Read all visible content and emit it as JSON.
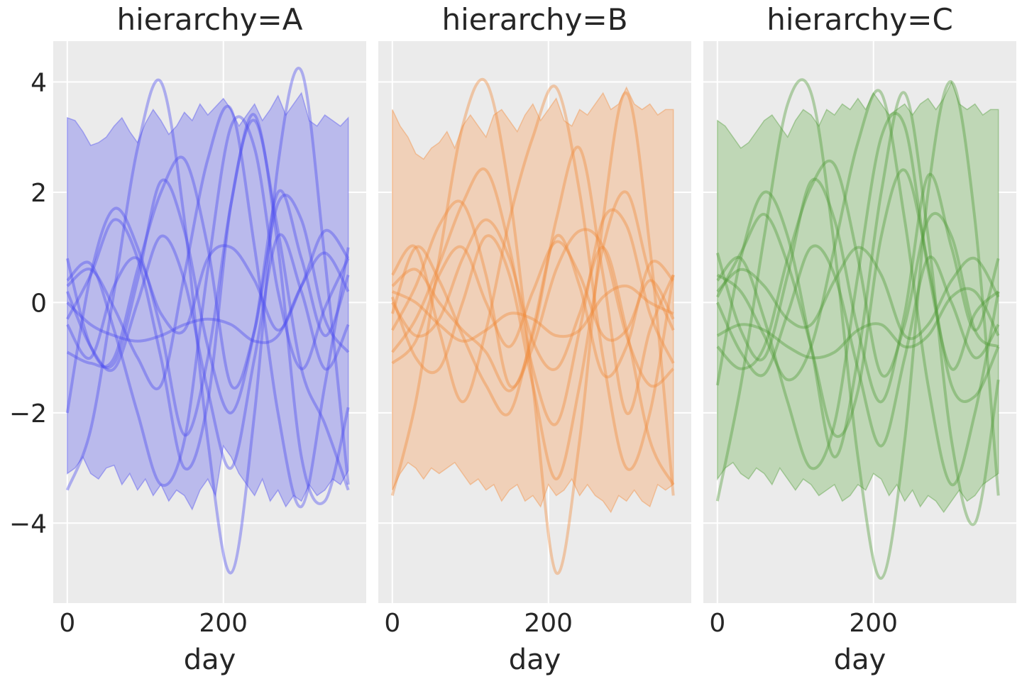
{
  "chart_data": {
    "type": "line",
    "facet_label": "hierarchy",
    "xlabel": "day",
    "xlim": [
      -18,
      383
    ],
    "ylim": [
      -5.45,
      4.74
    ],
    "xticks": [
      0,
      200
    ],
    "yticks": [
      -4,
      -2,
      0,
      2,
      4
    ],
    "ytick_labels": [
      "−4",
      "−2",
      "0",
      "2",
      "4"
    ],
    "grid": true,
    "x_curves": [
      0,
      30,
      60,
      90,
      120,
      150,
      180,
      210,
      240,
      270,
      300,
      330,
      360
    ],
    "x_band": [
      0,
      10,
      20,
      30,
      40,
      50,
      60,
      70,
      80,
      90,
      100,
      110,
      120,
      130,
      140,
      150,
      160,
      170,
      180,
      190,
      200,
      210,
      220,
      230,
      240,
      250,
      260,
      270,
      280,
      290,
      300,
      310,
      320,
      330,
      340,
      350,
      360
    ],
    "panels": [
      {
        "title": "hierarchy=A",
        "color": "#4b4bf0",
        "fill": "#babaec",
        "band_upper": [
          3.35,
          3.3,
          3.1,
          2.85,
          2.9,
          3.0,
          3.2,
          3.35,
          3.1,
          2.9,
          3.25,
          3.5,
          3.3,
          3.05,
          3.2,
          3.45,
          3.3,
          3.6,
          3.4,
          3.55,
          3.7,
          3.5,
          3.2,
          3.4,
          3.6,
          3.3,
          3.5,
          3.75,
          3.4,
          3.6,
          3.8,
          3.3,
          3.2,
          3.4,
          3.3,
          3.2,
          3.35
        ],
        "band_lower": [
          -3.1,
          -3.0,
          -2.8,
          -3.1,
          -3.2,
          -3.0,
          -2.95,
          -3.3,
          -3.1,
          -3.4,
          -3.2,
          -3.5,
          -3.3,
          -3.6,
          -3.4,
          -3.5,
          -3.75,
          -3.4,
          -3.2,
          -3.5,
          -2.6,
          -2.8,
          -3.1,
          -3.3,
          -3.5,
          -3.2,
          -3.6,
          -3.4,
          -3.7,
          -3.5,
          -3.6,
          -3.3,
          -3.5,
          -3.4,
          -3.2,
          -3.3,
          -3.05
        ],
        "curves": [
          [
            -3.4,
            -2.3,
            0.2,
            2.8,
            4.0,
            1.5,
            -2.5,
            -4.9,
            -2.0,
            2.5,
            4.2,
            0.8,
            -3.3
          ],
          [
            -2.0,
            0.5,
            1.7,
            1.0,
            -0.5,
            -2.4,
            -1.0,
            1.8,
            3.4,
            1.0,
            -2.8,
            -3.6,
            -1.9
          ],
          [
            0.8,
            -0.8,
            -1.1,
            0.4,
            2.2,
            1.3,
            -0.8,
            -2.0,
            -0.5,
            2.0,
            0.8,
            -0.6,
            0.5
          ],
          [
            -0.4,
            -1.0,
            0.3,
            0.8,
            -0.2,
            -0.5,
            0.8,
            1.0,
            0.4,
            -0.5,
            0.3,
            1.3,
            0.8
          ],
          [
            0.3,
            0.6,
            -0.1,
            -1.0,
            -1.5,
            0.5,
            2.6,
            3.5,
            1.0,
            -2.0,
            -3.7,
            -1.5,
            1.0
          ],
          [
            0.0,
            -0.4,
            -0.6,
            -0.7,
            -0.6,
            -0.4,
            -0.3,
            -0.4,
            -0.7,
            -0.6,
            0.3,
            0.9,
            0.2
          ],
          [
            -0.9,
            -1.1,
            -1.0,
            0.6,
            2.0,
            2.6,
            1.0,
            -1.5,
            -0.5,
            1.8,
            1.5,
            -0.3,
            -0.9
          ],
          [
            0.4,
            0.7,
            -0.5,
            -2.0,
            -3.3,
            -2.5,
            0.6,
            3.2,
            2.8,
            0.2,
            -1.2,
            -0.1,
            0.8
          ],
          [
            0.2,
            -0.8,
            -1.2,
            0.0,
            1.2,
            0.4,
            -1.6,
            -3.0,
            -1.0,
            1.2,
            0.2,
            -1.2,
            -0.4
          ],
          [
            -0.3,
            0.5,
            1.5,
            0.8,
            -1.0,
            -3.0,
            -1.8,
            1.8,
            3.3,
            1.3,
            -1.2,
            -2.2,
            -3.4
          ]
        ]
      },
      {
        "title": "hierarchy=B",
        "color": "#f08a3a",
        "fill": "#f0d0b8",
        "band_upper": [
          3.5,
          3.2,
          3.0,
          2.7,
          2.6,
          2.8,
          2.9,
          3.1,
          2.8,
          3.2,
          3.4,
          3.2,
          3.0,
          3.4,
          3.5,
          3.3,
          3.1,
          3.4,
          3.6,
          3.3,
          3.5,
          3.7,
          3.3,
          3.2,
          3.5,
          3.4,
          3.6,
          3.8,
          3.5,
          3.6,
          3.9,
          3.6,
          3.5,
          3.6,
          3.4,
          3.5,
          3.5
        ],
        "band_lower": [
          -3.4,
          -3.1,
          -2.9,
          -3.0,
          -3.2,
          -3.0,
          -3.1,
          -3.0,
          -2.9,
          -3.1,
          -3.3,
          -3.2,
          -3.4,
          -3.3,
          -3.6,
          -3.4,
          -3.3,
          -3.6,
          -3.5,
          -3.7,
          -3.3,
          -3.5,
          -3.4,
          -3.2,
          -3.5,
          -3.3,
          -3.5,
          -3.6,
          -3.8,
          -3.5,
          -3.6,
          -3.4,
          -3.6,
          -3.7,
          -3.3,
          -3.4,
          -3.3
        ],
        "curves": [
          [
            -3.5,
            -1.8,
            0.8,
            3.2,
            4.0,
            2.0,
            -1.5,
            -4.9,
            -2.5,
            1.5,
            3.8,
            1.0,
            -3.5
          ],
          [
            0.5,
            1.0,
            -0.5,
            -1.8,
            -0.5,
            1.5,
            3.0,
            3.9,
            2.0,
            -1.0,
            -3.0,
            -2.0,
            0.5
          ],
          [
            -1.1,
            -0.7,
            0.5,
            1.0,
            0.0,
            -0.8,
            0.2,
            1.1,
            0.5,
            -0.6,
            -0.5,
            0.4,
            -0.3
          ],
          [
            0.2,
            0.0,
            -0.4,
            -0.7,
            -0.5,
            -0.2,
            -0.3,
            -0.6,
            -0.5,
            0.1,
            0.3,
            0.0,
            -0.2
          ],
          [
            -0.9,
            -0.3,
            0.7,
            1.8,
            2.4,
            1.0,
            -1.2,
            -2.2,
            -0.5,
            1.5,
            1.4,
            -0.2,
            -1.1
          ],
          [
            0.1,
            -1.0,
            -1.2,
            0.0,
            1.2,
            0.5,
            -1.5,
            -3.2,
            -1.5,
            1.0,
            2.0,
            0.5,
            -0.5
          ],
          [
            0.3,
            0.6,
            0.0,
            -0.5,
            -0.9,
            -1.6,
            -0.8,
            0.6,
            1.3,
            1.0,
            -0.6,
            -1.5,
            -1.2
          ],
          [
            -0.5,
            0.3,
            1.4,
            1.8,
            0.5,
            -1.5,
            -0.6,
            1.5,
            2.8,
            0.5,
            -2.0,
            -0.5,
            0.5
          ],
          [
            0.0,
            -0.6,
            -0.3,
            0.8,
            1.5,
            0.8,
            -0.7,
            -1.2,
            -0.2,
            1.0,
            -0.5,
            -2.5,
            -3.3
          ],
          [
            -0.2,
            1.0,
            0.4,
            -0.6,
            -1.5,
            -2.0,
            -0.5,
            1.2,
            0.3,
            -1.3,
            -0.8,
            0.7,
            0.4
          ]
        ]
      },
      {
        "title": "hierarchy=C",
        "color": "#4f9a36",
        "fill": "#bfd7b6",
        "band_upper": [
          3.3,
          3.2,
          3.0,
          2.8,
          2.9,
          3.1,
          3.3,
          3.4,
          3.2,
          3.0,
          3.3,
          3.5,
          3.4,
          3.2,
          3.5,
          3.4,
          3.6,
          3.5,
          3.7,
          3.5,
          3.8,
          3.6,
          3.4,
          3.5,
          3.6,
          3.4,
          3.6,
          3.7,
          3.5,
          3.7,
          4.0,
          3.6,
          3.5,
          3.6,
          3.4,
          3.5,
          3.5
        ],
        "band_lower": [
          -3.2,
          -3.0,
          -2.9,
          -3.1,
          -3.2,
          -3.0,
          -3.1,
          -3.3,
          -3.0,
          -3.2,
          -3.4,
          -3.2,
          -3.3,
          -3.5,
          -3.4,
          -3.3,
          -3.6,
          -3.5,
          -3.3,
          -3.4,
          -3.1,
          -3.2,
          -3.5,
          -3.3,
          -3.6,
          -3.4,
          -3.7,
          -3.5,
          -3.6,
          -3.8,
          -3.6,
          -3.4,
          -3.6,
          -3.5,
          -3.3,
          -3.2,
          -3.1
        ],
        "curves": [
          [
            -3.6,
            -1.5,
            1.2,
            3.6,
            3.8,
            1.0,
            -2.8,
            -5.0,
            -2.5,
            2.0,
            4.0,
            1.5,
            -3.5
          ],
          [
            -1.5,
            0.8,
            2.0,
            1.2,
            -0.8,
            -2.8,
            -1.0,
            2.0,
            3.8,
            1.2,
            -2.5,
            -4.0,
            -1.4
          ],
          [
            0.9,
            -0.5,
            -1.0,
            0.5,
            2.2,
            1.5,
            -0.5,
            -1.8,
            -0.2,
            2.3,
            1.0,
            -0.5,
            0.8
          ],
          [
            0.2,
            0.6,
            0.3,
            -0.3,
            -0.4,
            0.4,
            1.0,
            0.5,
            -0.6,
            -0.4,
            0.4,
            0.8,
            0.1
          ],
          [
            0.5,
            0.2,
            -0.6,
            -1.4,
            -0.8,
            1.0,
            2.9,
            3.8,
            1.5,
            -1.5,
            -3.3,
            -2.0,
            0.2
          ],
          [
            -0.6,
            -0.4,
            -0.5,
            -0.8,
            -1.0,
            -0.9,
            -0.5,
            -0.4,
            -0.8,
            -0.6,
            0.1,
            0.2,
            -0.6
          ],
          [
            -0.8,
            -1.2,
            -0.8,
            0.8,
            2.1,
            2.5,
            0.8,
            -1.3,
            -0.4,
            1.5,
            1.2,
            -0.5,
            -0.8
          ],
          [
            0.4,
            0.8,
            -0.3,
            -1.8,
            -3.0,
            -2.2,
            0.5,
            3.0,
            3.2,
            0.6,
            -1.2,
            -0.2,
            0.2
          ],
          [
            0.0,
            -0.9,
            -1.3,
            -0.2,
            1.0,
            0.5,
            -1.2,
            -2.6,
            -1.0,
            0.8,
            0.0,
            -1.0,
            -0.4
          ],
          [
            0.1,
            0.9,
            1.6,
            0.7,
            -0.8,
            -2.4,
            -1.6,
            1.2,
            2.4,
            0.7,
            -1.5,
            -1.7,
            -0.8
          ]
        ]
      }
    ]
  }
}
